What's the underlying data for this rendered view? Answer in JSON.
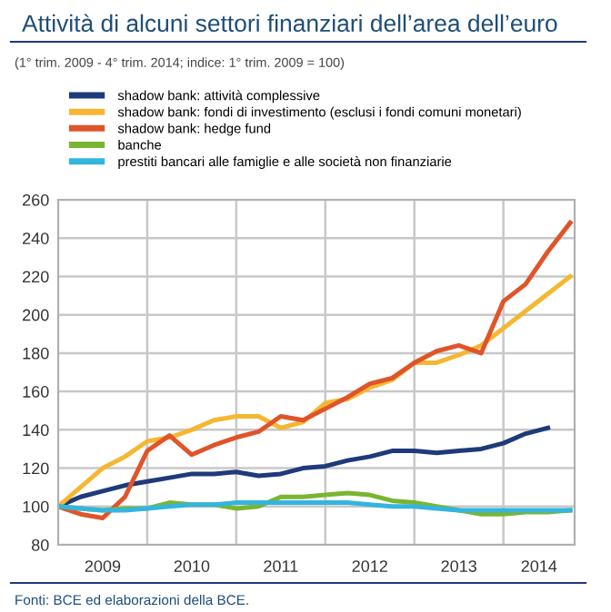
{
  "chart_data": {
    "type": "line",
    "title": "Attività di alcuni settori finanziari dell’area dell’euro",
    "subtitle": "(1° trim. 2009 - 4° trim. 2014; indice: 1° trim. 2009 = 100)",
    "x": [
      2009,
      2009.25,
      2009.5,
      2009.75,
      2010,
      2010.25,
      2010.5,
      2010.75,
      2011,
      2011.25,
      2011.5,
      2011.75,
      2012,
      2012.25,
      2012.5,
      2012.75,
      2013,
      2013.25,
      2013.5,
      2013.75,
      2014,
      2014.25,
      2014.5,
      2014.75
    ],
    "series": [
      {
        "name": "shadow bank: attività complessive",
        "color": "#1f3a7a",
        "values": [
          100,
          105,
          108,
          111,
          113,
          115,
          117,
          117,
          118,
          116,
          117,
          120,
          121,
          124,
          126,
          129,
          129,
          128,
          129,
          130,
          133,
          138,
          141,
          null
        ]
      },
      {
        "name": "shadow bank: fondi di investimento (esclusi i fondi comuni monetari)",
        "color": "#f5b731",
        "values": [
          100,
          110,
          120,
          126,
          134,
          136,
          140,
          145,
          147,
          147,
          141,
          144,
          154,
          156,
          162,
          166,
          175,
          175,
          179,
          184,
          193,
          202,
          211,
          220
        ]
      },
      {
        "name": "shadow bank: hedge fund",
        "color": "#e0542a",
        "values": [
          100,
          96,
          94,
          105,
          129,
          137,
          127,
          132,
          136,
          139,
          147,
          145,
          151,
          157,
          164,
          167,
          175,
          181,
          184,
          180,
          207,
          216,
          233,
          248
        ]
      },
      {
        "name": "banche",
        "color": "#7ab530",
        "values": [
          100,
          99,
          98,
          99,
          99,
          102,
          101,
          101,
          99,
          100,
          105,
          105,
          106,
          107,
          106,
          103,
          102,
          100,
          98,
          96,
          96,
          97,
          97,
          98
        ]
      },
      {
        "name": "prestiti bancari alle famiglie e alle società non finanziarie",
        "color": "#33b5e0",
        "values": [
          100,
          99,
          98,
          98,
          99,
          100,
          101,
          101,
          102,
          102,
          102,
          102,
          102,
          102,
          101,
          100,
          100,
          99,
          98,
          98,
          98,
          98,
          98,
          98
        ]
      }
    ],
    "xlim": [
      2009,
      2014.8
    ],
    "xticks": [
      {
        "value": 2009.5,
        "label": "2009"
      },
      {
        "value": 2010.5,
        "label": "2010"
      },
      {
        "value": 2011.5,
        "label": "2011"
      },
      {
        "value": 2012.5,
        "label": "2012"
      },
      {
        "value": 2013.5,
        "label": "2013"
      },
      {
        "value": 2014.4,
        "label": "2014"
      }
    ],
    "ylim": [
      80,
      260
    ],
    "yticks": [
      80,
      100,
      120,
      140,
      160,
      180,
      200,
      220,
      240,
      260
    ],
    "ref_lines": [
      {
        "axis": "x",
        "value": 2010,
        "color": "#c8c8c8"
      },
      {
        "axis": "x",
        "value": 2011,
        "color": "#c8c8c8"
      },
      {
        "axis": "x",
        "value": 2012,
        "color": "#c8c8c8"
      },
      {
        "axis": "x",
        "value": 2013,
        "color": "#c8c8c8"
      },
      {
        "axis": "x",
        "value": 2014,
        "color": "#c8c8c8"
      }
    ],
    "grid": "y",
    "legend": "top",
    "line_style": "solid",
    "marker": "none",
    "annotations": [
      "Fonti: BCE ed elaborazioni della BCE."
    ]
  }
}
